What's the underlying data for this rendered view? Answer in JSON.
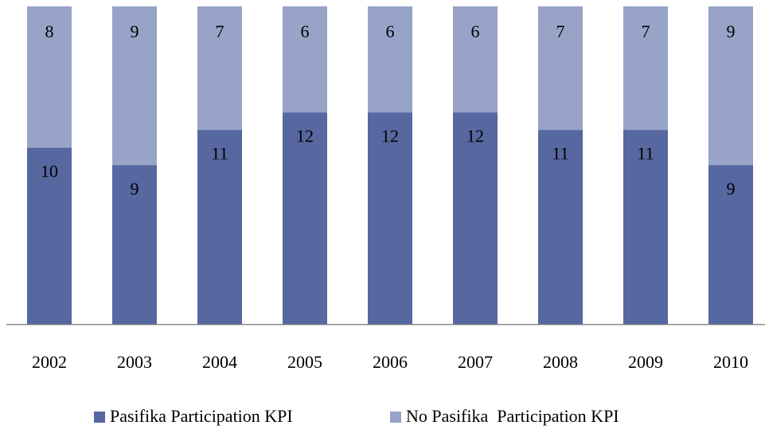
{
  "chart_data": {
    "type": "stacked-bar",
    "categories": [
      "2002",
      "2003",
      "2004",
      "2005",
      "2006",
      "2007",
      "2008",
      "2009",
      "2010"
    ],
    "series": [
      {
        "name": "Pasifika Participation KPI",
        "color": "#57679f",
        "values": [
          10,
          9,
          11,
          12,
          12,
          12,
          11,
          11,
          9
        ]
      },
      {
        "name": "No Pasifika  Participation KPI",
        "color": "#98a3c8",
        "values": [
          8,
          9,
          7,
          6,
          6,
          6,
          7,
          7,
          9
        ]
      }
    ],
    "ylim": [
      0,
      18
    ],
    "legend": "bottom"
  }
}
